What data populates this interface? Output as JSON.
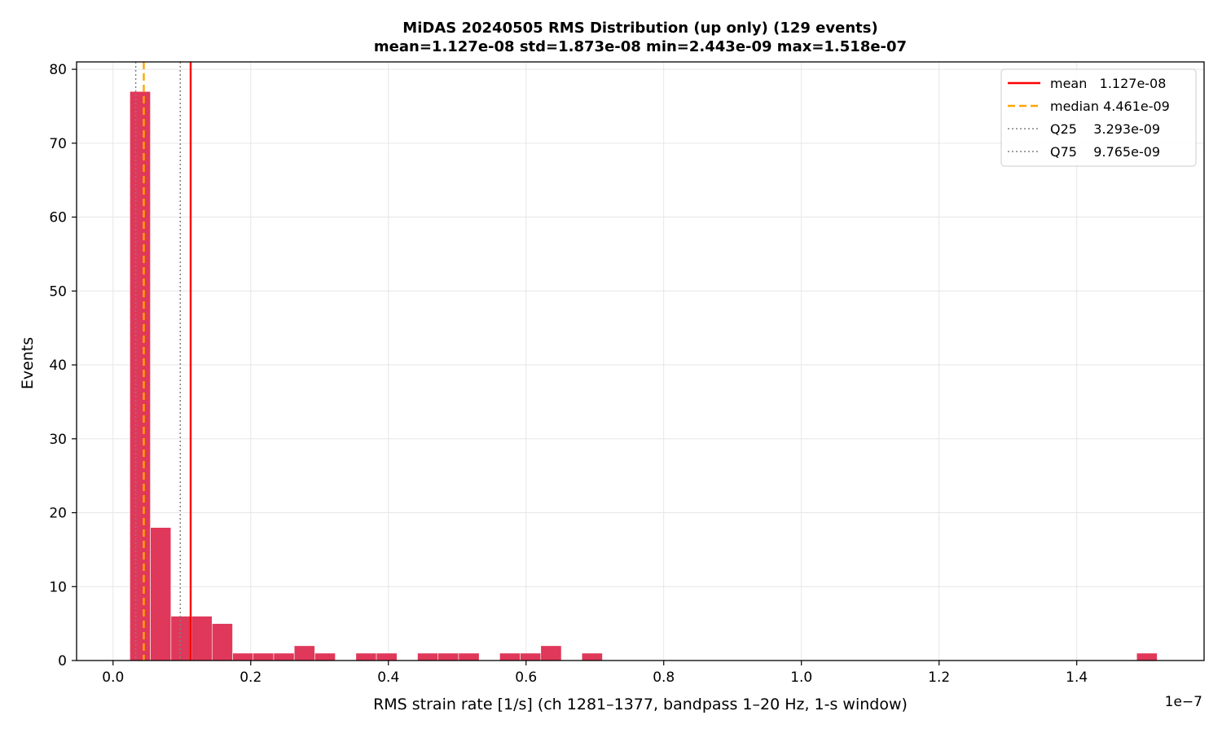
{
  "chart_data": {
    "type": "bar",
    "title": "MiDAS 20240505  RMS Distribution  (up only)  (129 events)",
    "subtitle": "mean=1.127e-08  std=1.873e-08  min=2.443e-09  max=1.518e-07",
    "xlabel": "RMS strain rate [1/s]  (ch 1281–1377, bandpass 1–20 Hz, 1-s window)",
    "ylabel": "Events",
    "x_offset_label": "1e−7",
    "xlim": [
      -0.053,
      1.585
    ],
    "ylim": [
      0,
      81
    ],
    "x_ticks": [
      0.0,
      0.2,
      0.4,
      0.6,
      0.8,
      1.0,
      1.2,
      1.4
    ],
    "x_tick_labels": [
      "0.0",
      "0.2",
      "0.4",
      "0.6",
      "0.8",
      "1.0",
      "1.2",
      "1.4"
    ],
    "y_ticks": [
      0,
      10,
      20,
      30,
      40,
      50,
      60,
      70,
      80
    ],
    "y_tick_labels": [
      "0",
      "10",
      "20",
      "30",
      "40",
      "50",
      "60",
      "70",
      "80"
    ],
    "grid": true,
    "bin_start": 0.0244,
    "bin_width": 0.02985,
    "counts": [
      77,
      18,
      6,
      6,
      5,
      1,
      1,
      1,
      2,
      1,
      0,
      1,
      1,
      0,
      1,
      1,
      1,
      0,
      1,
      1,
      2,
      0,
      1,
      0,
      0,
      0,
      0,
      0,
      0,
      0,
      0,
      0,
      0,
      0,
      0,
      0,
      0,
      0,
      0,
      0,
      0,
      0,
      0,
      0,
      0,
      0,
      0,
      0,
      0,
      1
    ],
    "bar_color": "#e0385a",
    "vlines": [
      {
        "name": "mean",
        "x": 0.1127,
        "color": "#ff0000",
        "style": "solid",
        "legend": "mean   1.127e-08"
      },
      {
        "name": "median",
        "x": 0.04461,
        "color": "#ffa500",
        "style": "dashed",
        "legend": "median 4.461e-09"
      },
      {
        "name": "Q25",
        "x": 0.03293,
        "color": "#808080",
        "style": "dotted",
        "legend": "Q25    3.293e-09"
      },
      {
        "name": "Q75",
        "x": 0.09765,
        "color": "#808080",
        "style": "dotted",
        "legend": "Q75    9.765e-09"
      }
    ],
    "legend_position": "top-right"
  }
}
